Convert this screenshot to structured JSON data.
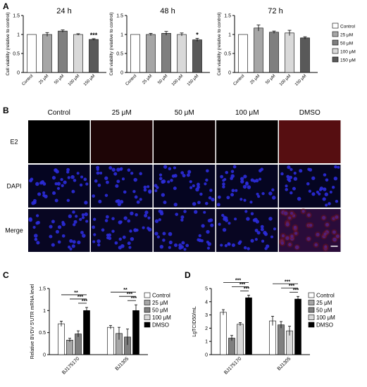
{
  "panel_labels": {
    "a": "A",
    "b": "B",
    "c": "C",
    "d": "D"
  },
  "colors": {
    "Control": "#ffffff",
    "25 μM": "#a6a6a6",
    "50 μM": "#7f7f7f",
    "100 μM": "#d9d9d9",
    "150 μM": "#595959",
    "DMSO": "#000000",
    "dapi_bg": "#050521",
    "nucleus": "#2c2cdc",
    "e2": "#7a1418"
  },
  "panel_a": {
    "legend": [
      "Control",
      "25 μM",
      "50 μM",
      "100 μM",
      "150 μM"
    ],
    "charts": [
      {
        "title": "24 h",
        "ylabel": "Cell viability (relative to control)",
        "categories": [
          "Control",
          "25 μM",
          "50 μM",
          "100 μM",
          "150 μM"
        ],
        "values": [
          1.0,
          1.0,
          1.09,
          1.0,
          0.87
        ],
        "errors": [
          0,
          0.05,
          0.03,
          0.02,
          0.02
        ],
        "sig": [
          "",
          "",
          "",
          "",
          "***"
        ],
        "ylim": [
          0,
          1.5
        ],
        "yticks": [
          "0",
          "0.5",
          "1",
          "1.5"
        ]
      },
      {
        "title": "48 h",
        "ylabel": "Cell viability (relative to control)",
        "categories": [
          "Control",
          "25 μM",
          "50 μM",
          "100 μM",
          "150 μM"
        ],
        "values": [
          1.0,
          1.0,
          1.03,
          1.0,
          0.86
        ],
        "errors": [
          0,
          0.03,
          0.05,
          0.04,
          0.04
        ],
        "sig": [
          "",
          "",
          "",
          "",
          "*"
        ],
        "ylim": [
          0,
          1.5
        ],
        "yticks": [
          "0",
          "0.5",
          "1",
          "1.5"
        ]
      },
      {
        "title": "72 h",
        "ylabel": "Cell viability (relative to control)",
        "categories": [
          "Control",
          "25 μM",
          "50 μM",
          "100 μM",
          "150 μM"
        ],
        "values": [
          1.0,
          1.17,
          1.06,
          1.04,
          0.91
        ],
        "errors": [
          0,
          0.08,
          0.03,
          0.07,
          0.03
        ],
        "sig": [
          "",
          "",
          "",
          "",
          ""
        ],
        "ylim": [
          0,
          1.5
        ],
        "yticks": [
          "0",
          "0.5",
          "1",
          "1.5"
        ]
      }
    ]
  },
  "panel_b": {
    "columns": [
      "Control",
      "25 μM",
      "50 μM",
      "100 μM",
      "DMSO"
    ],
    "rows": [
      "E2",
      "DAPI",
      "Merge"
    ],
    "e2_intensity": [
      0.0,
      0.35,
      0.15,
      0.05,
      1.0
    ]
  },
  "chart_data": [
    {
      "type": "bar",
      "title": "",
      "ylabel": "Relative BVDV 5'UTR mRNA level",
      "categories": [
        "BJ175170",
        "BJ1305"
      ],
      "series": [
        {
          "name": "Control",
          "values": [
            0.7,
            0.62
          ],
          "errors": [
            0.06,
            0.04
          ]
        },
        {
          "name": "25 μM",
          "values": [
            0.33,
            0.48
          ],
          "errors": [
            0.04,
            0.14
          ]
        },
        {
          "name": "50 μM",
          "values": [
            0.47,
            0.4
          ],
          "errors": [
            0.07,
            0.18
          ]
        },
        {
          "name": "DMSO",
          "values": [
            1.0,
            1.0
          ],
          "errors": [
            0.07,
            0.13
          ]
        }
      ],
      "ylim": [
        0,
        1.5
      ],
      "yticks": [
        "0",
        "0.5",
        "1",
        "1.5"
      ],
      "legend": [
        "Control",
        "25 μM",
        "50 μM",
        "100 μM",
        "DMSO"
      ],
      "sig_labels": [
        "**",
        "***",
        "***"
      ]
    },
    {
      "type": "bar",
      "title": "",
      "ylabel": "LgTCID50/mL",
      "categories": [
        "BJ175170",
        "BJ1305"
      ],
      "series": [
        {
          "name": "Control",
          "values": [
            3.2,
            2.55
          ],
          "errors": [
            0.2,
            0.35
          ]
        },
        {
          "name": "50 μM",
          "values": [
            1.25,
            2.25
          ],
          "errors": [
            0.2,
            0.25
          ]
        },
        {
          "name": "100 μM",
          "values": [
            2.3,
            1.8
          ],
          "errors": [
            0.12,
            0.35
          ]
        },
        {
          "name": "DMSO",
          "values": [
            4.3,
            4.2
          ],
          "errors": [
            0.2,
            0.2
          ]
        }
      ],
      "ylim": [
        0,
        5
      ],
      "yticks": [
        "0",
        "1",
        "2",
        "3",
        "4",
        "5"
      ],
      "legend": [
        "Control",
        "25 μM",
        "50 μM",
        "100 μM",
        "DMSO"
      ],
      "sig_labels": [
        "***",
        "***",
        "***"
      ]
    }
  ]
}
